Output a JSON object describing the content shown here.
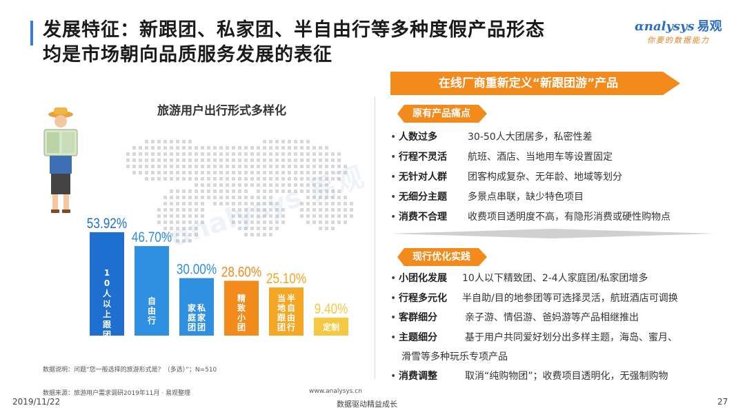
{
  "header": {
    "title_line1": "发展特征：新跟团、私家团、半自由行等多种度假产品形态",
    "title_line2": "均是市场朝向品质服务发展的表征"
  },
  "logo": {
    "brand_en": "nalysys",
    "brand_cn": "易观",
    "slogan": "你要的数据能力"
  },
  "chart_data": {
    "type": "bar",
    "title": "旅游用户出行形式多样化",
    "categories": [
      "10人以上跟团",
      "自由行",
      "私家团/家庭团",
      "精致小团",
      "半自由行/当地跟团",
      "定制"
    ],
    "values": [
      53.92,
      46.7,
      30.0,
      28.6,
      25.1,
      9.4
    ],
    "value_labels": [
      "53.92%",
      "46.70%",
      "30.00%",
      "28.60%",
      "25.10%",
      "9.40%"
    ],
    "ylim": [
      0,
      60
    ],
    "colors": [
      "#1e6fcf",
      "#2f8fe0",
      "#2f8fe0",
      "#f28a1c",
      "#f5a623",
      "#f5c842"
    ]
  },
  "notes": {
    "explanation": "数据说明：问题“您一般选择的旅游形式是？（多选）”；N=510",
    "source": "数据来源：旅游用户需求调研2019年11月 · 易观整理",
    "url": "www.analysys.cn"
  },
  "footer": {
    "date": "2019/11/22",
    "slogan": "数据驱动精益成长",
    "page": "27"
  },
  "right": {
    "banner": "在线厂商重新定义“新跟团游”产品",
    "pain_tag": "原有产品痛点",
    "pain_items": [
      {
        "k": "人数过多",
        "v": "30-50人大团居多，私密性差"
      },
      {
        "k": "行程不灵活",
        "v": "航班、酒店、当地用车等设置固定"
      },
      {
        "k": "无针对人群",
        "v": "团客构成复杂、无年龄、地域等划分"
      },
      {
        "k": "无细分主题",
        "v": "多景点串联，缺少特色项目"
      },
      {
        "k": "消费不合理",
        "v": "收费项目透明度不高，有隐形消费或硬性购物点"
      }
    ],
    "practice_tag": "现行优化实践",
    "practice_items": [
      {
        "k": "小团化发展",
        "v": "10人以下精致团、2-4人家庭团/私家团增多"
      },
      {
        "k": "行程多元化",
        "v": "半自助/目的地参团等可选择灵活，航班酒店可调换"
      },
      {
        "k": "客群细分",
        "v": "亲子游、情侣游、爸妈游等产品相继推出"
      },
      {
        "k": "主题细分",
        "v": "基于用户共同爱好划分出多样主题，海岛、蜜月、"
      },
      {
        "k": "消费调整",
        "v": "取消“纯购物团”；收费项目透明化，无强制购物"
      }
    ],
    "practice_cont": "滑雪等多种玩乐专项产品"
  }
}
